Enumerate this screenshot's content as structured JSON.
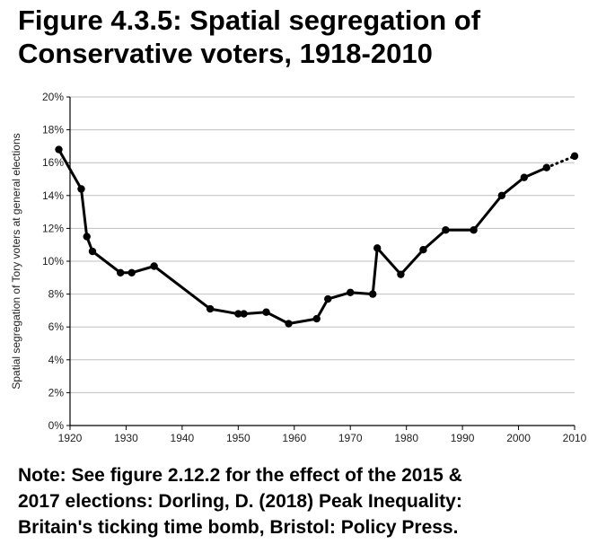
{
  "title": {
    "line1": "Figure 4.3.5: Spatial segregation of",
    "line2": "Conservative voters, 1918-2010"
  },
  "note": {
    "line1": "Note: See figure 2.12.2  for the effect of the 2015 &",
    "line2": "2017 elections: Dorling, D. (2018) Peak Inequality:",
    "line3": "Britain's ticking time bomb, Bristol: Policy Press."
  },
  "colors": {
    "line": "#000000",
    "grid": "#bfbfbf",
    "axis": "#000000"
  },
  "chart_data": {
    "type": "line",
    "title": "Figure 4.3.5: Spatial segregation of Conservative voters, 1918-2010",
    "xlabel": "",
    "ylabel": "Spatial segregation of Tory voters at general elections",
    "xlim": [
      1920,
      2010
    ],
    "ylim": [
      0,
      20
    ],
    "x_ticks": [
      1920,
      1930,
      1940,
      1950,
      1960,
      1970,
      1980,
      1990,
      2000,
      2010
    ],
    "y_ticks": [
      0,
      2,
      4,
      6,
      8,
      10,
      12,
      14,
      16,
      18,
      20
    ],
    "y_tick_labels": [
      "0%",
      "2%",
      "4%",
      "6%",
      "8%",
      "10%",
      "12%",
      "14%",
      "16%",
      "18%",
      "20%"
    ],
    "grid": true,
    "series": [
      {
        "name": "Segregation (solid)",
        "style": "solid",
        "x": [
          1918,
          1922,
          1923,
          1924,
          1929,
          1931,
          1935,
          1945,
          1950,
          1951,
          1955,
          1959,
          1964,
          1966,
          1970,
          1974,
          1974.8,
          1979,
          1983,
          1987,
          1992,
          1997,
          2001,
          2005
        ],
        "y": [
          16.8,
          14.4,
          11.5,
          10.6,
          9.3,
          9.3,
          9.7,
          7.1,
          6.8,
          6.8,
          6.9,
          6.2,
          6.5,
          7.7,
          8.1,
          8.0,
          10.8,
          9.2,
          10.7,
          11.9,
          11.9,
          14.0,
          15.1,
          15.7
        ]
      },
      {
        "name": "Segregation (dotted)",
        "style": "dotted",
        "x": [
          2005,
          2010
        ],
        "y": [
          15.7,
          16.4
        ]
      }
    ]
  }
}
